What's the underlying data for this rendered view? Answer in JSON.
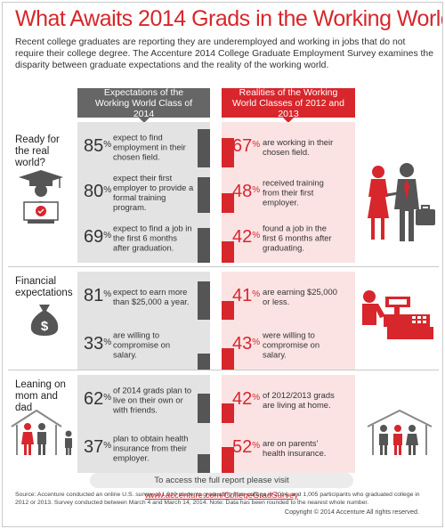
{
  "title": "What Awaits 2014 Grads in the Working World?",
  "intro": "Recent college graduates are reporting they are underemployed and working in jobs that do not require their college degree. The Accenture 2014 College Graduate Employment Survey examines the disparity between graduate expectations and the reality of the working world.",
  "columns": {
    "expectations": "Expectations of the Working World Class of 2014",
    "realities": "Realities of the Working World Classes of 2012 and 2013"
  },
  "sections": [
    {
      "label": "Ready for the real world?",
      "icon": "graduate-icon",
      "right_icon": "job-interview-icon"
    },
    {
      "label": "Financial expectations",
      "icon": "money-bag-icon",
      "right_icon": "cashier-icon"
    },
    {
      "label": "Leaning on mom and dad",
      "icon": "family-house-icon",
      "right_icon": "family-house-icon"
    }
  ],
  "rows": [
    {
      "exp_value": "85",
      "exp_text": "expect to find employment in their chosen field.",
      "real_value": "67",
      "real_text": "are working in their chosen field."
    },
    {
      "exp_value": "80",
      "exp_text": "expect their first employer to provide a formal training program.",
      "real_value": "48",
      "real_text": "received training from their first employer."
    },
    {
      "exp_value": "69",
      "exp_text": "expect to find a job in the first 6 months after graduation.",
      "real_value": "42",
      "real_text": "found a job in the first 6 months after graduating."
    },
    {
      "exp_value": "81",
      "exp_text": "expect to earn more than $25,000 a year.",
      "real_value": "41",
      "real_text": "are earning $25,000 or less."
    },
    {
      "exp_value": "33",
      "exp_text": "are willing to compromise on salary.",
      "real_value": "43",
      "real_text": "were willing to compromise on salary."
    },
    {
      "exp_value": "62",
      "exp_text": "of 2014 grads plan to live on their own or with friends.",
      "real_value": "42",
      "real_text": "of 2012/2013 grads are living at home."
    },
    {
      "exp_value": "37",
      "exp_text": "plan to obtain health insurance from their employer.",
      "real_value": "52",
      "real_text": "are on parents' health insurance."
    }
  ],
  "pct_symbol": "%",
  "footer": {
    "prefix": "To access the full report please visit ",
    "link": "www.accenture.com/CollegeGradSurvey"
  },
  "source": "Source: Accenture conducted an online U.S. survey of 1,010 students graduating from college in 2014, and 1,005 participants who graduated college in 2012 or 2013. Survey conducted between March 4 and March 14, 2014. Note: Data has been rounded to the nearest whole number.",
  "copyright": "Copyright © 2014 Accenture All rights reserved.",
  "colors": {
    "accent": "#d7262c",
    "dark": "#555555",
    "light_gray": "#e3e3e3",
    "light_red": "#fbe3e3"
  }
}
